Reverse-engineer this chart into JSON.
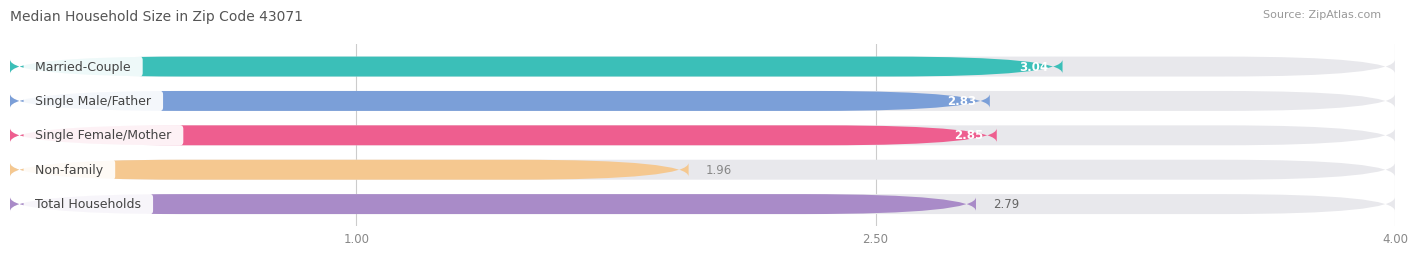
{
  "title": "Median Household Size in Zip Code 43071",
  "source": "Source: ZipAtlas.com",
  "categories": [
    "Married-Couple",
    "Single Male/Father",
    "Single Female/Mother",
    "Non-family",
    "Total Households"
  ],
  "values": [
    3.04,
    2.83,
    2.85,
    1.96,
    2.79
  ],
  "bar_colors": [
    "#3BBFB8",
    "#7B9FD8",
    "#EE5E8F",
    "#F5C890",
    "#A98BC8"
  ],
  "bar_bg_color": "#E8E8EC",
  "value_label_colors": [
    "#FFFFFF",
    "#FFFFFF",
    "#FFFFFF",
    "#888888",
    "#666666"
  ],
  "value_label_inside": [
    true,
    true,
    true,
    false,
    false
  ],
  "xmin": 0.0,
  "xmax": 4.0,
  "xstart": 0.0,
  "xticks": [
    1.0,
    2.5,
    4.0
  ],
  "xtick_labels": [
    "1.00",
    "2.50",
    "4.00"
  ],
  "title_fontsize": 10,
  "source_fontsize": 8,
  "bar_label_fontsize": 8.5,
  "cat_label_fontsize": 9,
  "background_color": "#FFFFFF",
  "bar_height": 0.58,
  "pill_bg": "#FFFFFF",
  "pill_alpha": 0.92
}
